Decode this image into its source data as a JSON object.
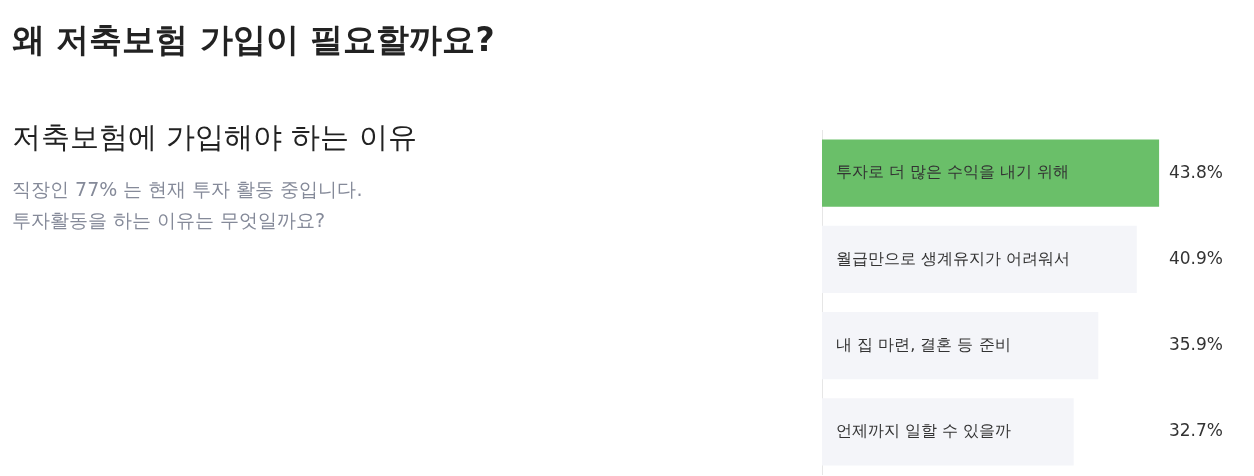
{
  "chart_data": {
    "type": "bar",
    "orientation": "horizontal",
    "title": "왜 저축보험 가입이 필요할까요?",
    "subtitle": "저축보험에 가입해야 하는 이유",
    "annotations": [
      "직장인 77% 는 현재 투자 활동 중입니다.",
      "투자활동을 하는 이유는 무엇일까요?"
    ],
    "categories": [
      "투자로 더 많은 수익을 내기 위해",
      "월급만으로 생계유지가 어려워서",
      "내 집 마련, 결혼 등 준비",
      "언제까지 일할 수 있을까"
    ],
    "values": [
      43.8,
      40.9,
      35.9,
      32.7
    ],
    "value_labels": [
      "43.8%",
      "40.9%",
      "35.9%",
      "32.7%"
    ],
    "colors": [
      "#6abf69",
      "#f4f5f9",
      "#f4f5f9",
      "#f4f5f9"
    ],
    "xlim": [
      0,
      56
    ],
    "legend": false
  }
}
